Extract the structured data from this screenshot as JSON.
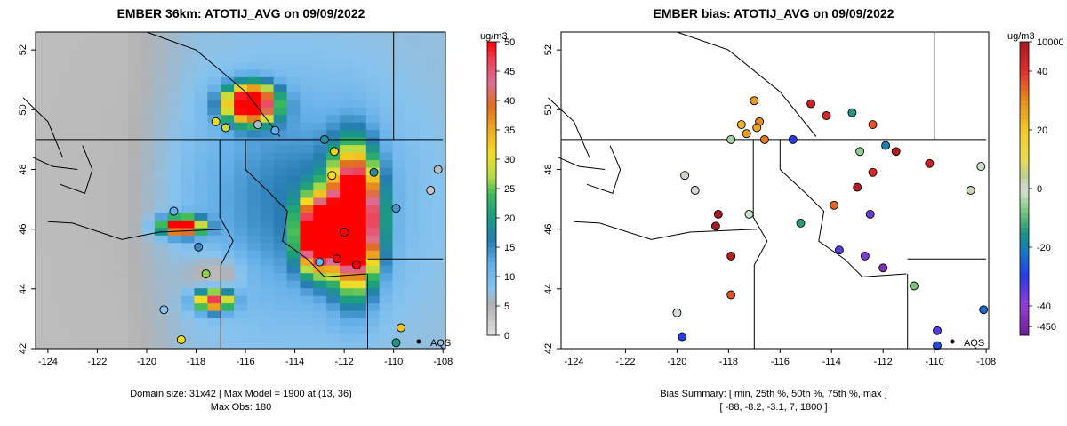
{
  "chart_data": [
    {
      "type": "heatmap",
      "title": "EMBER 36km: ATOTIJ_AVG on 09/09/2022",
      "xlabel": "",
      "ylabel": "",
      "x_ticks": [
        "-124",
        "-122",
        "-120",
        "-118",
        "-116",
        "-114",
        "-112",
        "-110",
        "-108"
      ],
      "y_ticks": [
        "42",
        "44",
        "46",
        "48",
        "50",
        "52"
      ],
      "xlim": [
        -124.5,
        -107.9
      ],
      "ylim": [
        42,
        52.6
      ],
      "colorbar": {
        "unit": "ug/m3",
        "labels": [
          "0",
          "5",
          "10",
          "15",
          "20",
          "25",
          "30",
          "35",
          "40",
          "45",
          "50"
        ],
        "range": [
          0,
          50
        ]
      },
      "site_label": "AQS",
      "site_lonlat": [
        -109.3,
        42.2
      ],
      "footer": [
        "Domain size: 31x42 | Max Model = 1900 at (13, 36)",
        "Max Obs: 180"
      ],
      "observations": [
        {
          "lon": -118.9,
          "lat": 46.6,
          "value": 12
        },
        {
          "lon": -117.2,
          "lat": 49.6,
          "value": 30
        },
        {
          "lon": -116.8,
          "lat": 49.4,
          "value": 28
        },
        {
          "lon": -115.5,
          "lat": 49.5,
          "value": 6
        },
        {
          "lon": -114.8,
          "lat": 49.3,
          "value": 12
        },
        {
          "lon": -112.8,
          "lat": 49.0,
          "value": 18
        },
        {
          "lon": -112.4,
          "lat": 48.6,
          "value": 32
        },
        {
          "lon": -112.5,
          "lat": 47.8,
          "value": 31
        },
        {
          "lon": -110.8,
          "lat": 47.9,
          "value": 18
        },
        {
          "lon": -109.9,
          "lat": 46.7,
          "value": 14
        },
        {
          "lon": -112.0,
          "lat": 45.9,
          "value": 50
        },
        {
          "lon": -112.3,
          "lat": 45.0,
          "value": 50
        },
        {
          "lon": -113.0,
          "lat": 44.9,
          "value": 12
        },
        {
          "lon": -111.5,
          "lat": 44.8,
          "value": 50
        },
        {
          "lon": -117.9,
          "lat": 45.4,
          "value": 15
        },
        {
          "lon": -117.6,
          "lat": 44.5,
          "value": 26
        },
        {
          "lon": -119.3,
          "lat": 43.3,
          "value": 8
        },
        {
          "lon": -118.6,
          "lat": 42.3,
          "value": 31
        },
        {
          "lon": -109.7,
          "lat": 42.7,
          "value": 33
        },
        {
          "lon": -109.9,
          "lat": 42.2,
          "value": 20
        },
        {
          "lon": -108.2,
          "lat": 48.0,
          "value": 4
        },
        {
          "lon": -108.5,
          "lat": 47.3,
          "value": 3
        }
      ]
    },
    {
      "type": "scatter",
      "title": "EMBER bias: ATOTIJ_AVG on 09/09/2022",
      "xlabel": "",
      "ylabel": "",
      "x_ticks": [
        "-124",
        "-122",
        "-120",
        "-118",
        "-116",
        "-114",
        "-112",
        "-110",
        "-108"
      ],
      "y_ticks": [
        "42",
        "44",
        "46",
        "48",
        "50",
        "52"
      ],
      "xlim": [
        -124.5,
        -107.9
      ],
      "ylim": [
        42,
        52.6
      ],
      "colorbar": {
        "unit": "ug/m3",
        "labels": [
          "10000",
          "40",
          "20",
          "0",
          "-20",
          "-40",
          "-450"
        ],
        "range": [
          -450,
          10000
        ]
      },
      "site_label": "AQS",
      "site_lonlat": [
        -109.3,
        42.2
      ],
      "footer": [
        "Bias Summary: [ min, 25th %, 50th %, 75th %, max ]",
        "[ -88,   -8.2,   -3.1,   7,   1800 ]"
      ],
      "bias_summary": {
        "min": -88,
        "p25": -8.2,
        "p50": -3.1,
        "p75": 7,
        "max": 1800
      },
      "points": [
        {
          "lon": -117.0,
          "lat": 50.3,
          "bias": 28
        },
        {
          "lon": -116.8,
          "lat": 49.6,
          "bias": 30
        },
        {
          "lon": -116.9,
          "lat": 49.4,
          "bias": 26
        },
        {
          "lon": -117.3,
          "lat": 49.2,
          "bias": 27
        },
        {
          "lon": -116.6,
          "lat": 49.0,
          "bias": 32
        },
        {
          "lon": -117.5,
          "lat": 49.5,
          "bias": 24
        },
        {
          "lon": -117.9,
          "lat": 49.0,
          "bias": -5
        },
        {
          "lon": -114.8,
          "lat": 50.2,
          "bias": 45
        },
        {
          "lon": -114.2,
          "lat": 49.8,
          "bias": 42
        },
        {
          "lon": -115.5,
          "lat": 49.0,
          "bias": -30
        },
        {
          "lon": -112.4,
          "lat": 49.5,
          "bias": 36
        },
        {
          "lon": -113.2,
          "lat": 49.9,
          "bias": -15
        },
        {
          "lon": -112.9,
          "lat": 48.6,
          "bias": -6
        },
        {
          "lon": -111.9,
          "lat": 48.8,
          "bias": -20
        },
        {
          "lon": -111.5,
          "lat": 48.6,
          "bias": 50
        },
        {
          "lon": -110.2,
          "lat": 48.2,
          "bias": 45
        },
        {
          "lon": -108.2,
          "lat": 48.1,
          "bias": -2
        },
        {
          "lon": -108.6,
          "lat": 47.3,
          "bias": 2
        },
        {
          "lon": -112.4,
          "lat": 47.9,
          "bias": 42
        },
        {
          "lon": -113.0,
          "lat": 47.4,
          "bias": 48
        },
        {
          "lon": -113.9,
          "lat": 46.8,
          "bias": 34
        },
        {
          "lon": -112.5,
          "lat": 46.5,
          "bias": -36
        },
        {
          "lon": -115.2,
          "lat": 46.2,
          "bias": -14
        },
        {
          "lon": -113.7,
          "lat": 45.3,
          "bias": -35
        },
        {
          "lon": -112.7,
          "lat": 45.1,
          "bias": -38
        },
        {
          "lon": -112.0,
          "lat": 44.7,
          "bias": -45
        },
        {
          "lon": -110.8,
          "lat": 44.1,
          "bias": -8
        },
        {
          "lon": -109.9,
          "lat": 42.6,
          "bias": -34
        },
        {
          "lon": -109.9,
          "lat": 42.1,
          "bias": -28
        },
        {
          "lon": -108.1,
          "lat": 43.3,
          "bias": -24
        },
        {
          "lon": -118.4,
          "lat": 46.5,
          "bias": 50
        },
        {
          "lon": -118.5,
          "lat": 46.1,
          "bias": 50
        },
        {
          "lon": -117.9,
          "lat": 45.1,
          "bias": 48
        },
        {
          "lon": -117.9,
          "lat": 43.8,
          "bias": 36
        },
        {
          "lon": -117.2,
          "lat": 46.5,
          "bias": -2
        },
        {
          "lon": -119.3,
          "lat": 47.3,
          "bias": 0
        },
        {
          "lon": -119.7,
          "lat": 47.8,
          "bias": 1
        },
        {
          "lon": -120.0,
          "lat": 43.2,
          "bias": -1
        },
        {
          "lon": -119.8,
          "lat": 42.4,
          "bias": -30
        }
      ]
    }
  ]
}
